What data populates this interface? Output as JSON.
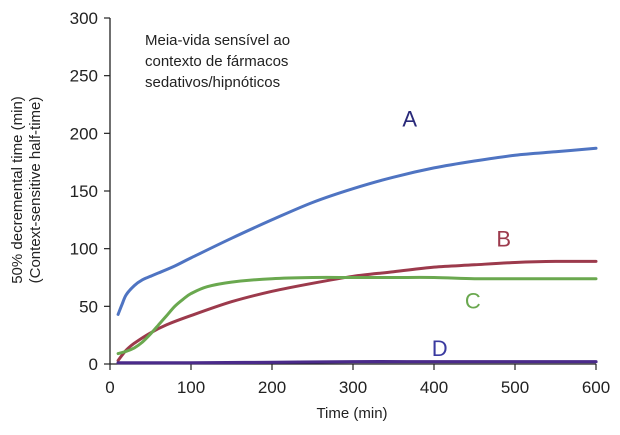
{
  "chart_data": {
    "type": "line",
    "title": "Meia-vida sensível ao contexto de fármacos sedativos/hipnóticos",
    "title_lines": [
      "Meia-vida sensível ao",
      "contexto de fármacos",
      "sedativos/hipnóticos"
    ],
    "xlabel": "Time (min)",
    "ylabel_lines": [
      "50% decremental time (min)",
      "(Context-sensitive half-time)"
    ],
    "xlim": [
      0,
      600
    ],
    "ylim": [
      0,
      300
    ],
    "xticks": [
      0,
      100,
      200,
      300,
      400,
      500,
      600
    ],
    "yticks": [
      0,
      50,
      100,
      150,
      200,
      250,
      300
    ],
    "ytick_labels": [
      "0",
      "50",
      "100",
      "150",
      "200",
      "250",
      "300"
    ],
    "grid": false,
    "series": [
      {
        "name": "A",
        "color": "#4f74c2",
        "label_color": "#2a2a7a",
        "label_at": [
          370,
          206
        ],
        "x": [
          10,
          15,
          20,
          30,
          40,
          50,
          60,
          80,
          100,
          150,
          200,
          250,
          300,
          350,
          400,
          450,
          500,
          550,
          600
        ],
        "y": [
          43,
          52,
          60,
          68,
          73,
          76,
          79,
          85,
          92,
          109,
          125,
          140,
          152,
          162,
          170,
          176,
          181,
          184,
          187
        ]
      },
      {
        "name": "B",
        "color": "#9c3a4c",
        "label_color": "#9c3a4c",
        "label_at": [
          486,
          102
        ],
        "x": [
          10,
          20,
          30,
          50,
          70,
          100,
          150,
          200,
          250,
          300,
          350,
          400,
          450,
          500,
          550,
          600
        ],
        "y": [
          3,
          12,
          18,
          27,
          34,
          42,
          54,
          63,
          70,
          76,
          80,
          84,
          86,
          88,
          89,
          89
        ]
      },
      {
        "name": "C",
        "color": "#6aa84f",
        "label_color": "#6aa84f",
        "label_at": [
          448,
          48
        ],
        "x": [
          10,
          20,
          30,
          40,
          50,
          60,
          70,
          80,
          90,
          100,
          120,
          150,
          200,
          250,
          300,
          350,
          400,
          450,
          500,
          550,
          600
        ],
        "y": [
          9,
          11,
          14,
          19,
          26,
          34,
          42,
          50,
          56,
          61,
          67,
          71,
          74,
          75,
          75,
          75,
          75,
          74,
          74,
          74,
          74
        ]
      },
      {
        "name": "D",
        "color": "#4a2a8a",
        "label_color": "#3a3aa0",
        "label_at": [
          407,
          7
        ],
        "x": [
          10,
          100,
          200,
          300,
          400,
          500,
          600
        ],
        "y": [
          1,
          1,
          1.5,
          2,
          2,
          2,
          2
        ]
      }
    ]
  }
}
